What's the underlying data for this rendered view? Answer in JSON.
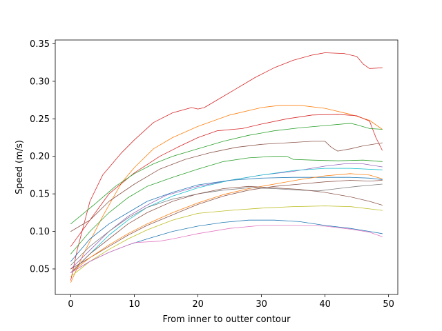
{
  "chart_data": {
    "type": "line",
    "title": "",
    "xlabel": "From inner to outter contour",
    "ylabel": "Speed (m/s)",
    "xlim": [
      -2.45,
      51.45
    ],
    "ylim": [
      0.016,
      0.355
    ],
    "xticks": [
      0,
      10,
      20,
      30,
      40,
      50
    ],
    "yticks": [
      0.05,
      0.1,
      0.15,
      0.2,
      0.25,
      0.3,
      0.35
    ],
    "ytick_labels": [
      "0.05",
      "0.10",
      "0.15",
      "0.20",
      "0.25",
      "0.30",
      "0.35"
    ],
    "grid": false,
    "legend": "none",
    "series": [
      {
        "color": "#d62728",
        "points": [
          [
            0,
            0.035
          ],
          [
            1,
            0.075
          ],
          [
            3,
            0.14
          ],
          [
            5,
            0.175
          ],
          [
            8,
            0.205
          ],
          [
            10,
            0.222
          ],
          [
            13,
            0.245
          ],
          [
            16,
            0.258
          ],
          [
            19,
            0.265
          ],
          [
            20,
            0.263
          ],
          [
            21,
            0.265
          ],
          [
            23,
            0.275
          ],
          [
            26,
            0.29
          ],
          [
            29,
            0.305
          ],
          [
            32,
            0.318
          ],
          [
            35,
            0.328
          ],
          [
            38,
            0.335
          ],
          [
            40,
            0.338
          ],
          [
            43,
            0.337
          ],
          [
            45,
            0.333
          ],
          [
            46,
            0.323
          ],
          [
            47,
            0.317
          ],
          [
            49,
            0.318
          ]
        ]
      },
      {
        "color": "#ff7f0e",
        "points": [
          [
            0,
            0.032
          ],
          [
            2,
            0.07
          ],
          [
            5,
            0.12
          ],
          [
            8,
            0.165
          ],
          [
            10,
            0.185
          ],
          [
            13,
            0.21
          ],
          [
            16,
            0.225
          ],
          [
            20,
            0.24
          ],
          [
            25,
            0.255
          ],
          [
            30,
            0.265
          ],
          [
            33,
            0.268
          ],
          [
            36,
            0.268
          ],
          [
            40,
            0.264
          ],
          [
            44,
            0.256
          ],
          [
            47,
            0.248
          ],
          [
            49,
            0.236
          ]
        ]
      },
      {
        "color": "#d62728",
        "points": [
          [
            0,
            0.08
          ],
          [
            3,
            0.115
          ],
          [
            6,
            0.15
          ],
          [
            10,
            0.178
          ],
          [
            14,
            0.2
          ],
          [
            17,
            0.213
          ],
          [
            20,
            0.225
          ],
          [
            23,
            0.234
          ],
          [
            27,
            0.237
          ],
          [
            30,
            0.243
          ],
          [
            34,
            0.25
          ],
          [
            38,
            0.255
          ],
          [
            42,
            0.256
          ],
          [
            45,
            0.254
          ],
          [
            47,
            0.247
          ],
          [
            48,
            0.225
          ],
          [
            49,
            0.208
          ]
        ]
      },
      {
        "color": "#2ca02c",
        "points": [
          [
            0,
            0.11
          ],
          [
            4,
            0.138
          ],
          [
            7,
            0.16
          ],
          [
            10,
            0.177
          ],
          [
            13,
            0.19
          ],
          [
            16,
            0.2
          ],
          [
            20,
            0.21
          ],
          [
            24,
            0.22
          ],
          [
            28,
            0.228
          ],
          [
            32,
            0.234
          ],
          [
            36,
            0.238
          ],
          [
            40,
            0.241
          ],
          [
            44,
            0.244
          ],
          [
            45,
            0.242
          ],
          [
            47,
            0.237
          ],
          [
            49,
            0.236
          ]
        ]
      },
      {
        "color": "#8c564b",
        "points": [
          [
            0,
            0.1
          ],
          [
            3,
            0.115
          ],
          [
            6,
            0.14
          ],
          [
            10,
            0.163
          ],
          [
            14,
            0.183
          ],
          [
            18,
            0.196
          ],
          [
            22,
            0.205
          ],
          [
            26,
            0.212
          ],
          [
            30,
            0.216
          ],
          [
            34,
            0.218
          ],
          [
            38,
            0.22
          ],
          [
            40,
            0.22
          ],
          [
            41,
            0.212
          ],
          [
            42,
            0.207
          ],
          [
            44,
            0.21
          ],
          [
            46,
            0.214
          ],
          [
            49,
            0.218
          ]
        ]
      },
      {
        "color": "#2ca02c",
        "points": [
          [
            0,
            0.07
          ],
          [
            3,
            0.1
          ],
          [
            6,
            0.125
          ],
          [
            9,
            0.145
          ],
          [
            12,
            0.16
          ],
          [
            16,
            0.172
          ],
          [
            20,
            0.183
          ],
          [
            24,
            0.193
          ],
          [
            28,
            0.198
          ],
          [
            32,
            0.2
          ],
          [
            34,
            0.2
          ],
          [
            35,
            0.196
          ],
          [
            38,
            0.195
          ],
          [
            42,
            0.194
          ],
          [
            46,
            0.195
          ],
          [
            49,
            0.193
          ]
        ]
      },
      {
        "color": "#9467bd",
        "points": [
          [
            0,
            0.05
          ],
          [
            3,
            0.075
          ],
          [
            6,
            0.1
          ],
          [
            9,
            0.12
          ],
          [
            12,
            0.135
          ],
          [
            15,
            0.148
          ],
          [
            20,
            0.16
          ],
          [
            25,
            0.168
          ],
          [
            30,
            0.175
          ],
          [
            35,
            0.18
          ],
          [
            40,
            0.187
          ],
          [
            43,
            0.19
          ],
          [
            46,
            0.19
          ],
          [
            49,
            0.186
          ]
        ]
      },
      {
        "color": "#17becf",
        "points": [
          [
            0,
            0.045
          ],
          [
            3,
            0.07
          ],
          [
            6,
            0.095
          ],
          [
            9,
            0.115
          ],
          [
            12,
            0.132
          ],
          [
            16,
            0.147
          ],
          [
            20,
            0.158
          ],
          [
            25,
            0.168
          ],
          [
            30,
            0.175
          ],
          [
            35,
            0.181
          ],
          [
            40,
            0.184
          ],
          [
            44,
            0.184
          ],
          [
            49,
            0.182
          ]
        ]
      },
      {
        "color": "#1f77b4",
        "points": [
          [
            0,
            0.06
          ],
          [
            3,
            0.09
          ],
          [
            6,
            0.11
          ],
          [
            9,
            0.125
          ],
          [
            12,
            0.14
          ],
          [
            16,
            0.152
          ],
          [
            20,
            0.162
          ],
          [
            25,
            0.168
          ],
          [
            30,
            0.171
          ],
          [
            35,
            0.172
          ],
          [
            40,
            0.172
          ],
          [
            44,
            0.172
          ],
          [
            47,
            0.171
          ],
          [
            49,
            0.169
          ]
        ]
      },
      {
        "color": "#8c564b",
        "points": [
          [
            0,
            0.05
          ],
          [
            3,
            0.065
          ],
          [
            6,
            0.08
          ],
          [
            9,
            0.095
          ],
          [
            12,
            0.108
          ],
          [
            16,
            0.122
          ],
          [
            20,
            0.136
          ],
          [
            24,
            0.147
          ],
          [
            28,
            0.155
          ],
          [
            32,
            0.16
          ],
          [
            36,
            0.163
          ],
          [
            40,
            0.166
          ],
          [
            44,
            0.168
          ],
          [
            47,
            0.167
          ],
          [
            49,
            0.168
          ]
        ]
      },
      {
        "color": "#ff7f0e",
        "points": [
          [
            0,
            0.045
          ],
          [
            3,
            0.065
          ],
          [
            6,
            0.082
          ],
          [
            9,
            0.097
          ],
          [
            12,
            0.11
          ],
          [
            16,
            0.125
          ],
          [
            20,
            0.138
          ],
          [
            24,
            0.149
          ],
          [
            28,
            0.157
          ],
          [
            32,
            0.163
          ],
          [
            36,
            0.169
          ],
          [
            40,
            0.174
          ],
          [
            44,
            0.177
          ],
          [
            47,
            0.175
          ],
          [
            49,
            0.17
          ]
        ]
      },
      {
        "color": "#7f7f7f",
        "points": [
          [
            0,
            0.055
          ],
          [
            3,
            0.08
          ],
          [
            6,
            0.1
          ],
          [
            9,
            0.118
          ],
          [
            12,
            0.132
          ],
          [
            16,
            0.143
          ],
          [
            20,
            0.15
          ],
          [
            24,
            0.155
          ],
          [
            28,
            0.158
          ],
          [
            32,
            0.157
          ],
          [
            36,
            0.155
          ],
          [
            39,
            0.154
          ],
          [
            42,
            0.157
          ],
          [
            45,
            0.16
          ],
          [
            49,
            0.163
          ]
        ]
      },
      {
        "color": "#8c564b",
        "points": [
          [
            0,
            0.045
          ],
          [
            3,
            0.07
          ],
          [
            6,
            0.09
          ],
          [
            9,
            0.11
          ],
          [
            12,
            0.125
          ],
          [
            16,
            0.14
          ],
          [
            20,
            0.15
          ],
          [
            24,
            0.157
          ],
          [
            28,
            0.16
          ],
          [
            32,
            0.158
          ],
          [
            36,
            0.156
          ],
          [
            40,
            0.152
          ],
          [
            44,
            0.146
          ],
          [
            47,
            0.14
          ],
          [
            49,
            0.135
          ]
        ]
      },
      {
        "color": "#bcbd22",
        "points": [
          [
            0,
            0.04
          ],
          [
            3,
            0.06
          ],
          [
            6,
            0.076
          ],
          [
            9,
            0.09
          ],
          [
            12,
            0.102
          ],
          [
            16,
            0.115
          ],
          [
            20,
            0.124
          ],
          [
            25,
            0.128
          ],
          [
            30,
            0.131
          ],
          [
            35,
            0.133
          ],
          [
            40,
            0.134
          ],
          [
            44,
            0.133
          ],
          [
            47,
            0.13
          ],
          [
            49,
            0.128
          ]
        ]
      },
      {
        "color": "#1f77b4",
        "points": [
          [
            0,
            0.045
          ],
          [
            3,
            0.06
          ],
          [
            6,
            0.072
          ],
          [
            9,
            0.082
          ],
          [
            12,
            0.09
          ],
          [
            16,
            0.1
          ],
          [
            20,
            0.107
          ],
          [
            24,
            0.112
          ],
          [
            28,
            0.115
          ],
          [
            32,
            0.115
          ],
          [
            36,
            0.113
          ],
          [
            40,
            0.108
          ],
          [
            44,
            0.104
          ],
          [
            47,
            0.1
          ],
          [
            49,
            0.097
          ]
        ]
      },
      {
        "color": "#e377c2",
        "points": [
          [
            0,
            0.045
          ],
          [
            3,
            0.06
          ],
          [
            6,
            0.072
          ],
          [
            9,
            0.082
          ],
          [
            10,
            0.085
          ],
          [
            14,
            0.087
          ],
          [
            16,
            0.09
          ],
          [
            20,
            0.097
          ],
          [
            25,
            0.104
          ],
          [
            30,
            0.108
          ],
          [
            35,
            0.108
          ],
          [
            40,
            0.107
          ],
          [
            44,
            0.103
          ],
          [
            47,
            0.099
          ],
          [
            49,
            0.093
          ]
        ]
      }
    ]
  }
}
